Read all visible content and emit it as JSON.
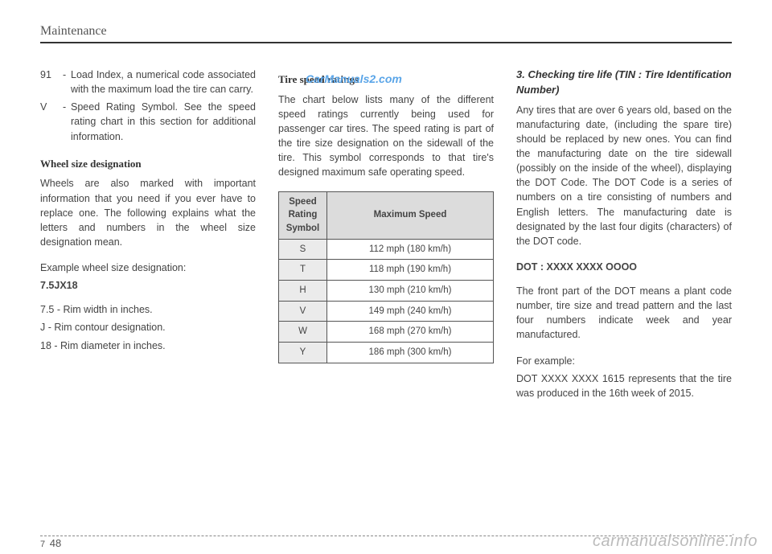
{
  "header": "Maintenance",
  "watermark_top": "CarManuals2.com",
  "col1": {
    "defs": [
      {
        "key": "91",
        "sep": "-",
        "val": "Load Index, a numerical code associated with the maximum load the tire can carry."
      },
      {
        "key": "V",
        "sep": "-",
        "val": "Speed Rating Symbol. See the speed rating chart in this section for additional information."
      }
    ],
    "wheel_head": "Wheel size designation",
    "wheel_para": "Wheels are also marked with important information that you need if you ever have to replace one. The following explains what the letters and numbers in the wheel size designation mean.",
    "example_label": "Example wheel size designation:",
    "example_value": "7.5JX18",
    "lines": [
      "7.5 - Rim width in inches.",
      "J - Rim contour designation.",
      "18 - Rim diameter in inches."
    ]
  },
  "col2": {
    "head": "Tire speed ratings",
    "para": "The chart below lists many of the different speed ratings currently being used for passenger car tires. The speed rating is part of the tire size designation on the sidewall of the tire. This symbol corresponds to that tire's designed maximum safe operating speed.",
    "table": {
      "th_left": "Speed Rating Symbol",
      "th_right": "Maximum Speed",
      "rows": [
        {
          "sym": "S",
          "speed": "112 mph (180 km/h)"
        },
        {
          "sym": "T",
          "speed": "118 mph (190 km/h)"
        },
        {
          "sym": "H",
          "speed": "130 mph (210 km/h)"
        },
        {
          "sym": "V",
          "speed": "149 mph (240 km/h)"
        },
        {
          "sym": "W",
          "speed": "168 mph (270 km/h)"
        },
        {
          "sym": "Y",
          "speed": "186 mph (300 km/h)"
        }
      ]
    }
  },
  "col3": {
    "head": "3. Checking tire life (TIN : Tire Identification Number)",
    "para1": "Any tires that are over 6 years old, based on the manufacturing date, (including the spare tire) should be replaced by new ones. You can find the manufacturing date on the tire sidewall (possibly on the inside of the wheel), displaying the DOT Code. The DOT Code is a series of numbers on a tire consisting of numbers and English letters. The manufacturing date is designated by the last four digits (characters) of the DOT code.",
    "dot_head": "DOT : XXXX XXXX OOOO",
    "para2": "The front part of the DOT means a plant code number, tire size and tread pattern and the last four numbers indicate week and year manufactured.",
    "example_label": "For example:",
    "para3": "DOT XXXX XXXX 1615 represents that the tire was produced in the 16th week of 2015."
  },
  "page_number": {
    "section": "7",
    "page": "48"
  },
  "watermark_bottom": "carmanualsonline.info"
}
